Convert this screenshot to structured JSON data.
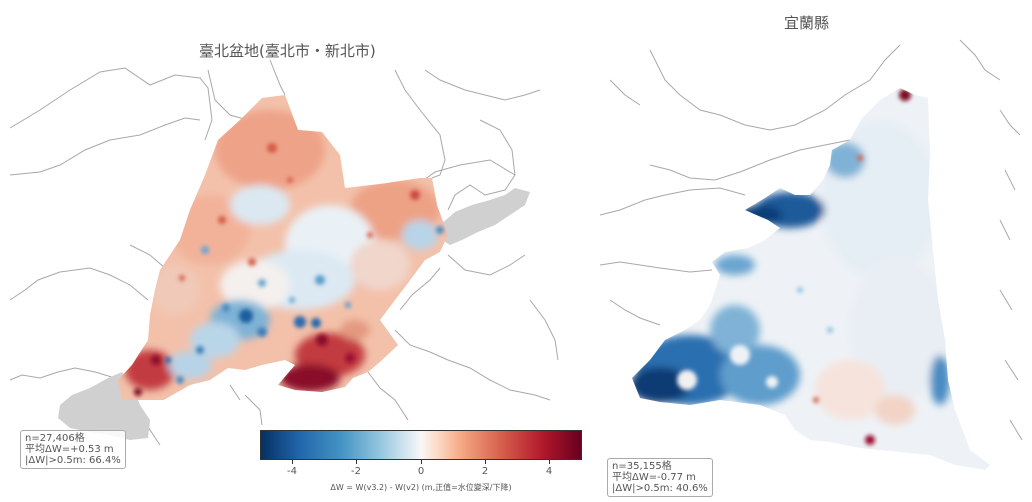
{
  "panels": [
    {
      "title": "臺北盆地(臺北市・新北市)",
      "stats": [
        "n=27,406格",
        "平均ΔW=+0.53 m",
        "|ΔW|>0.5m: 66.4%"
      ]
    },
    {
      "title": "宜蘭縣",
      "stats": [
        "n=35,155格",
        "平均ΔW=-0.77 m",
        "|ΔW|>0.5m: 40.6%"
      ]
    }
  ],
  "colorbar": {
    "ticks": [
      "-4",
      "-2",
      "0",
      "2",
      "4"
    ],
    "label": "ΔW = W(v3.2) - W(v2)  (m,正值=水位變深/下降)",
    "range": [
      -5,
      5
    ],
    "colormap": [
      "#053061",
      "#2166ac",
      "#4393c3",
      "#92c5de",
      "#d1e5f0",
      "#f7f7f7",
      "#fddbc7",
      "#f4a582",
      "#d6604d",
      "#b2182b",
      "#67001f"
    ]
  },
  "colors": {
    "no_data": "#d0d0d0",
    "boundary": "#999999"
  }
}
